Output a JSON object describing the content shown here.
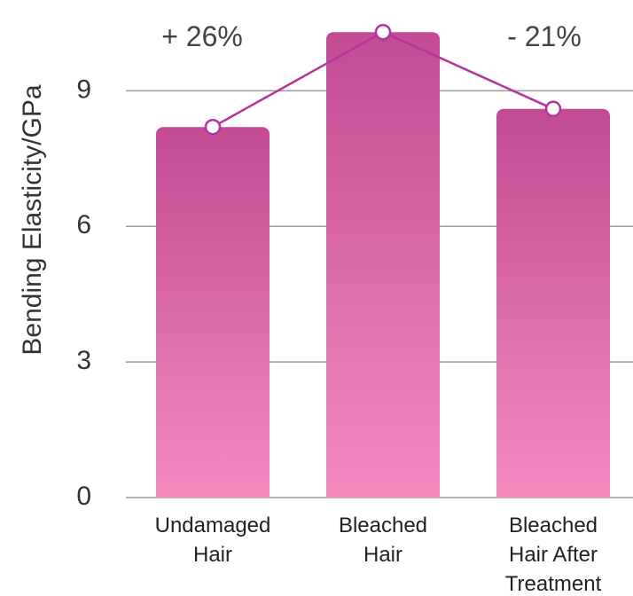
{
  "chart_data": {
    "type": "bar",
    "ylabel": "Bending Elasticity/GPa",
    "ylim": [
      0,
      10.5
    ],
    "yticks": [
      "0",
      "3",
      "6",
      "9"
    ],
    "grid": true,
    "categories": [
      [
        "Undamaged",
        "Hair"
      ],
      [
        "Bleached",
        "Hair"
      ],
      [
        "Bleached",
        "Hair After",
        "Treatment"
      ]
    ],
    "values": [
      8.2,
      10.3,
      8.6
    ],
    "line_values": [
      8.2,
      10.3,
      8.6
    ],
    "annotations": [
      "+ 26%",
      "- 21%"
    ],
    "colors": {
      "bar_top": "#c24b93",
      "bar_bottom": "#f48ac0",
      "line": "#b3359a",
      "marker_fill": "#ffffff",
      "grid": "#9a9a9a"
    }
  }
}
